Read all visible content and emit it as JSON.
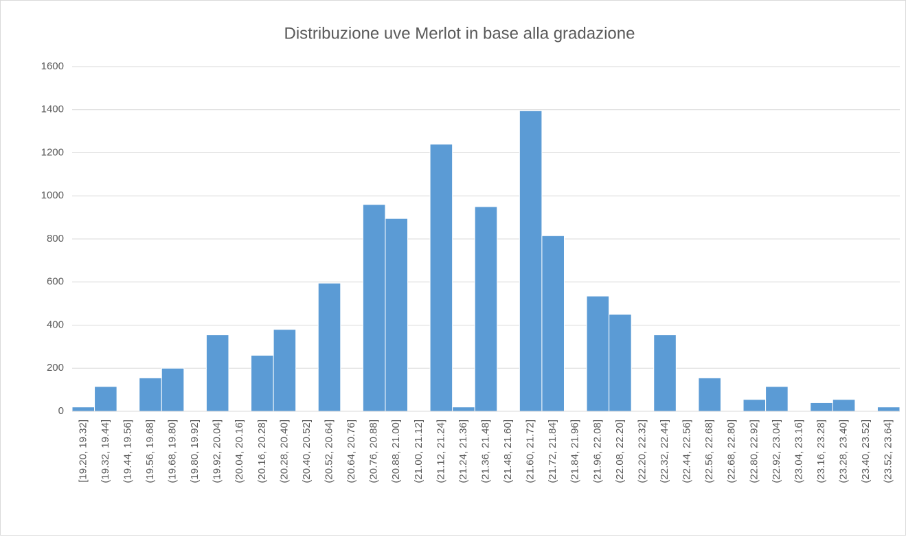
{
  "chart_data": {
    "type": "bar",
    "title": "Distribuzione uve Merlot in base alla gradazione",
    "categories": [
      "[19.20, 19.32]",
      "(19.32, 19.44]",
      "(19.44, 19.56]",
      "(19.56, 19.68]",
      "(19.68, 19.80]",
      "(19.80, 19.92]",
      "(19.92, 20.04]",
      "(20.04, 20.16]",
      "(20.16, 20.28]",
      "(20.28, 20.40]",
      "(20.40, 20.52]",
      "(20.52, 20.64]",
      "(20.64, 20.76]",
      "(20.76, 20.88]",
      "(20.88, 21.00]",
      "(21.00, 21.12]",
      "(21.12, 21.24]",
      "(21.24, 21.36]",
      "(21.36, 21.48]",
      "(21.48, 21.60]",
      "(21.60, 21.72]",
      "(21.72, 21.84]",
      "(21.84, 21.96]",
      "(21.96, 22.08]",
      "(22.08, 22.20]",
      "(22.20, 22.32]",
      "(22.32, 22.44]",
      "(22.44, 22.56]",
      "(22.56, 22.68]",
      "(22.68, 22.80]",
      "(22.80, 22.92]",
      "(22.92, 23.04]",
      "(23.04, 23.16]",
      "(23.16, 23.28]",
      "(23.28, 23.40]",
      "(23.40, 23.52]",
      "(23.52, 23.64]"
    ],
    "values": [
      20,
      115,
      0,
      155,
      200,
      0,
      355,
      0,
      260,
      380,
      0,
      595,
      0,
      960,
      895,
      0,
      1240,
      20,
      950,
      0,
      1395,
      815,
      0,
      535,
      450,
      0,
      355,
      0,
      155,
      0,
      55,
      115,
      0,
      40,
      55,
      0,
      20
    ],
    "color": "#5b9bd5",
    "ylim": [
      0,
      1600
    ],
    "yticks": [
      0,
      200,
      400,
      600,
      800,
      1000,
      1200,
      1400,
      1600
    ],
    "grid": true
  }
}
